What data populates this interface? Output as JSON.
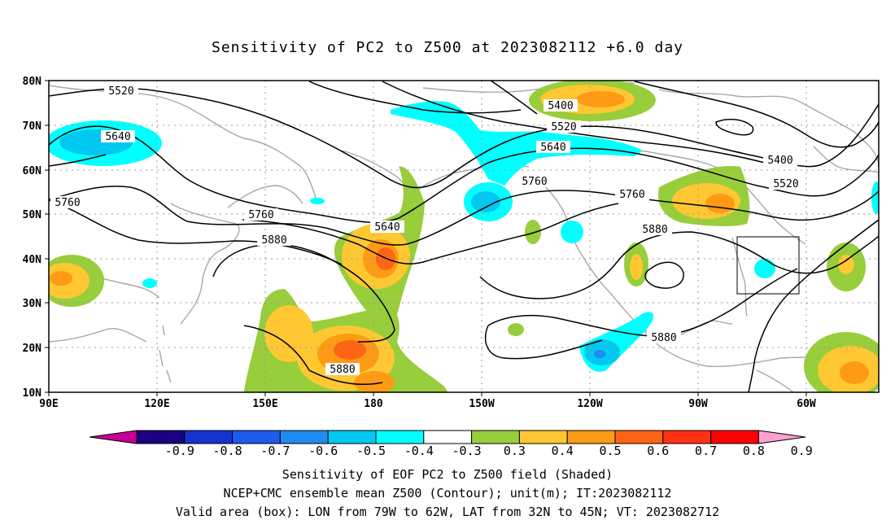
{
  "title": "Sensitivity of PC2 to Z500 at 2023082112 +6.0 day",
  "lat_labels": [
    "80N",
    "70N",
    "60N",
    "50N",
    "40N",
    "30N",
    "20N",
    "10N"
  ],
  "lon_labels": [
    "90E",
    "120E",
    "150E",
    "180",
    "150W",
    "120W",
    "90W",
    "60W"
  ],
  "contour_labels": {
    "c5520_w": "5520",
    "c5640_w": "5640",
    "c5760_w": "5760",
    "c5760_mw": "5760",
    "c5880_mw": "5880",
    "c5640_dl": "5640",
    "c5400_np": "5400",
    "c5520_np": "5520",
    "c5640_np": "5640",
    "c5760_np": "5760",
    "c5760_na": "5760",
    "c5880_na": "5880",
    "c5400_e": "5400",
    "c5520_e": "5520",
    "c5880_s": "5880",
    "c5880_c": "5880"
  },
  "colorbar": {
    "labels": [
      "-0.9",
      "-0.8",
      "-0.7",
      "-0.6",
      "-0.5",
      "-0.4",
      "-0.3",
      "0.3",
      "0.4",
      "0.5",
      "0.6",
      "0.7",
      "0.8",
      "0.9"
    ],
    "colors": [
      "#1a0080",
      "#1433d1",
      "#1e5aee",
      "#1e8cf0",
      "#00c8f0",
      "#00ffff",
      "#ffffff",
      "#98cd3b",
      "#ffc832",
      "#ff9a14",
      "#ff6414",
      "#ff3214",
      "#ff0000"
    ],
    "left_arrow_color": "#c80096",
    "right_arrow_color": "#ffa0d2"
  },
  "captions": [
    "Sensitivity of EOF PC2 to Z500 field (Shaded)",
    "NCEP+CMC ensemble mean Z500 (Contour); unit(m); IT:2023082112",
    "Valid area (box): LON from 79W to 62W, LAT from 32N to 45N; VT: 2023082712"
  ]
}
